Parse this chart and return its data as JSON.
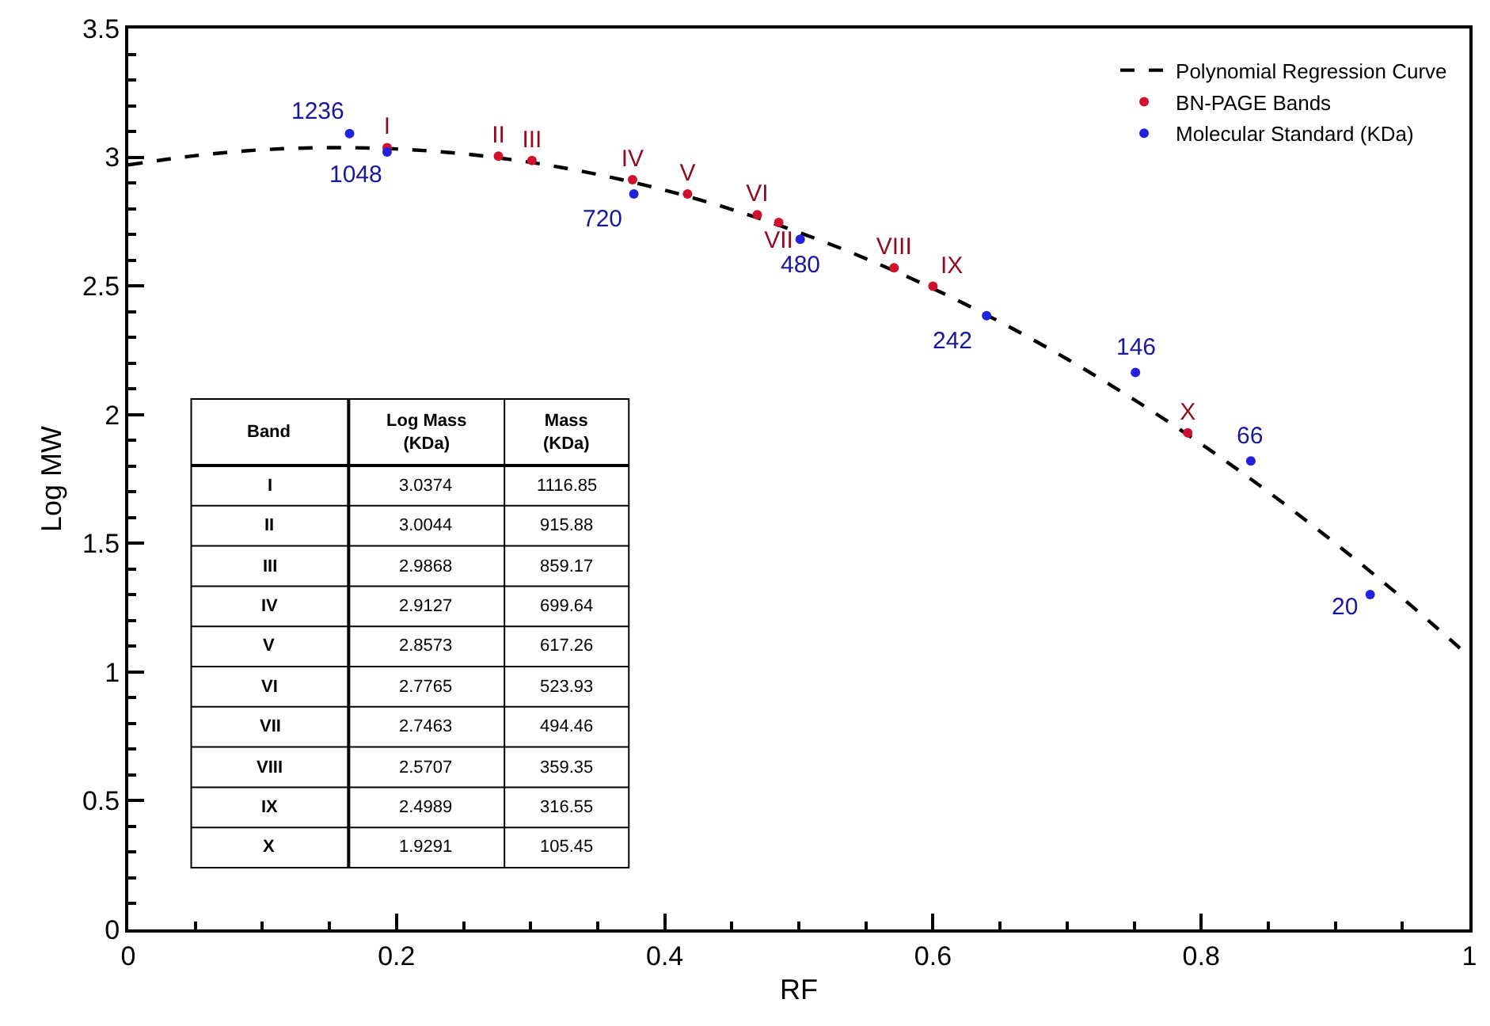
{
  "chart_data": [
    {
      "type": "scatter",
      "xlabel": "RF",
      "ylabel": "Log MW",
      "xlim": [
        0,
        1
      ],
      "xticks": [
        0,
        0.2,
        0.4,
        0.6,
        0.8,
        1
      ],
      "ylim": [
        0,
        3.5
      ],
      "yticks": [
        0,
        0.5,
        1,
        1.5,
        2,
        2.5,
        3,
        3.5
      ],
      "grid": false,
      "legend": "top right",
      "series": [
        {
          "name": "Polynomial Regression Curve",
          "type": "line",
          "color": "#000000",
          "marker": "none",
          "line_style": "dashed",
          "x": [
            0,
            0.05,
            0.1,
            0.15,
            0.2,
            0.25,
            0.3,
            0.35,
            0.4,
            0.45,
            0.5,
            0.55,
            0.6,
            0.65,
            0.7,
            0.75,
            0.8,
            0.85,
            0.9,
            0.95,
            1.0
          ],
          "values": [
            2.97,
            3.006,
            3.029,
            3.037,
            3.032,
            3.013,
            2.98,
            2.933,
            2.872,
            2.797,
            2.708,
            2.606,
            2.49,
            2.36,
            2.216,
            2.058,
            1.886,
            1.7,
            1.5,
            1.287,
            1.06
          ]
        },
        {
          "name": "BN-PAGE Bands",
          "type": "scatter",
          "color": "#d0102c",
          "marker": "circle",
          "x": [
            0.193,
            0.276,
            0.301,
            0.376,
            0.417,
            0.469,
            0.485,
            0.571,
            0.6,
            0.79
          ],
          "values": [
            3.0374,
            3.0044,
            2.9868,
            2.9127,
            2.8573,
            2.7765,
            2.7463,
            2.5707,
            2.4989,
            1.9291
          ],
          "value_labels": [
            "I",
            "II",
            "III",
            "IV",
            "V",
            "VI",
            "VII",
            "VIII",
            "IX",
            "X"
          ]
        },
        {
          "name": "Molecular Standard (KDa)",
          "type": "scatter",
          "color": "#2222dd",
          "marker": "circle",
          "x": [
            0.165,
            0.193,
            0.377,
            0.501,
            0.64,
            0.751,
            0.837,
            0.926
          ],
          "values": [
            3.092,
            3.02,
            2.857,
            2.681,
            2.384,
            2.164,
            1.82,
            1.301
          ]
        }
      ],
      "annotations": [
        {
          "text": "1236",
          "x": 0.165,
          "y": 3.092
        },
        {
          "text": "1048",
          "x": 0.193,
          "y": 3.02
        },
        {
          "text": "720",
          "x": 0.377,
          "y": 2.857
        },
        {
          "text": "480",
          "x": 0.501,
          "y": 2.681
        },
        {
          "text": "242",
          "x": 0.64,
          "y": 2.384
        },
        {
          "text": "146",
          "x": 0.751,
          "y": 2.164
        },
        {
          "text": "66",
          "x": 0.837,
          "y": 1.82
        },
        {
          "text": "20",
          "x": 0.926,
          "y": 1.301
        }
      ]
    },
    {
      "type": "other",
      "xlabel": "Band",
      "data_labels": true,
      "categories": [
        "I",
        "II",
        "III",
        "IV",
        "V",
        "VI",
        "VII",
        "VIII",
        "IX",
        "X"
      ],
      "series": [
        {
          "name": "Log Mass (KDa)",
          "values": [
            3.0374,
            3.0044,
            2.9868,
            2.9127,
            2.8573,
            2.7765,
            2.7463,
            2.5707,
            2.4989,
            1.9291
          ]
        },
        {
          "name": "Mass (KDa)",
          "values": [
            1116.85,
            915.88,
            859.17,
            699.64,
            617.26,
            523.93,
            494.46,
            359.35,
            316.55,
            105.45
          ]
        }
      ]
    }
  ]
}
